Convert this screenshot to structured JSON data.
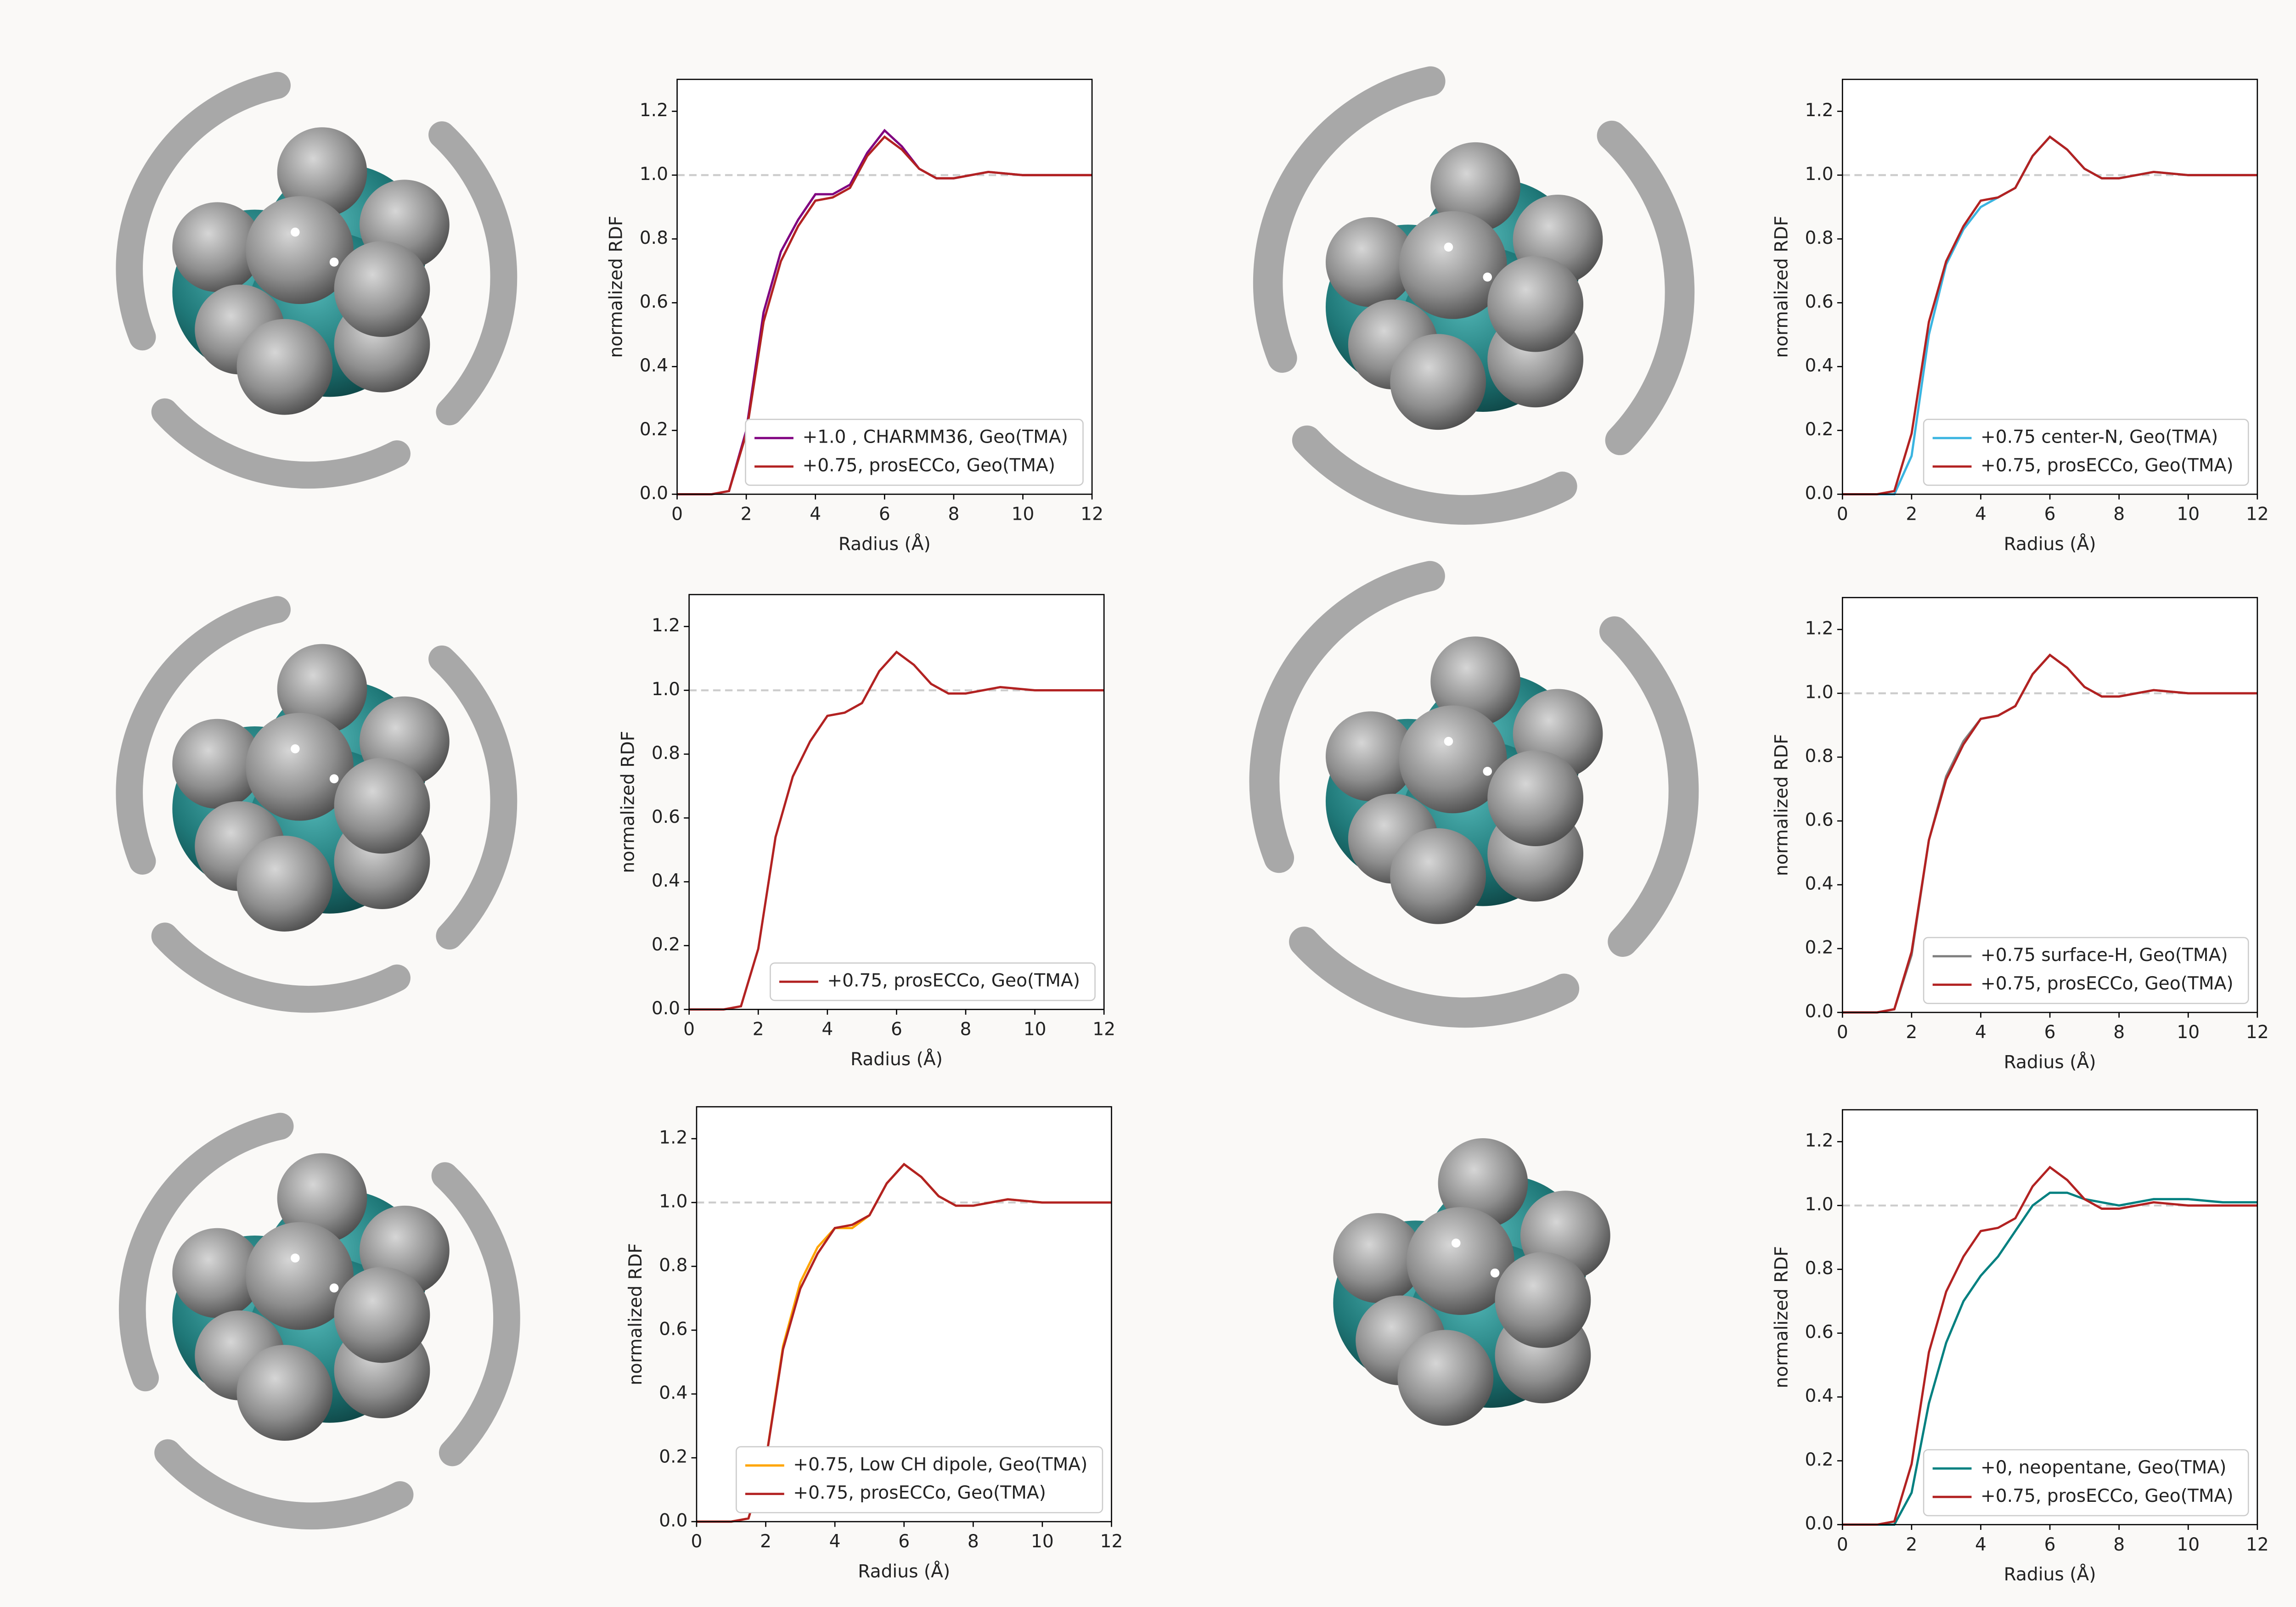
{
  "chart_data": [
    {
      "type": "line",
      "x_label": "Radius (Å)",
      "y_label": "normalized RDF",
      "x": [
        0,
        1,
        1.5,
        2,
        2.5,
        3,
        3.5,
        4,
        4.5,
        5,
        5.5,
        6,
        6.5,
        7,
        7.5,
        8,
        9,
        10,
        11,
        12
      ],
      "series": [
        {
          "name": "+1.0 , CHARMM36, Geo(TMA)",
          "color": "#800080",
          "values": [
            0,
            0,
            0.01,
            0.2,
            0.57,
            0.76,
            0.86,
            0.94,
            0.94,
            0.97,
            1.07,
            1.14,
            1.09,
            1.02,
            0.99,
            0.99,
            1.01,
            1.0,
            1.0,
            1.0
          ]
        },
        {
          "name": "+0.75, prosECCo, Geo(TMA)",
          "color": "#b22222",
          "values": [
            0,
            0,
            0.01,
            0.19,
            0.54,
            0.73,
            0.84,
            0.92,
            0.93,
            0.96,
            1.06,
            1.12,
            1.08,
            1.02,
            0.99,
            0.99,
            1.01,
            1.0,
            1.0,
            1.0
          ]
        }
      ],
      "xlim": [
        0,
        12
      ],
      "xticks": [
        0,
        2,
        4,
        6,
        8,
        10,
        12
      ],
      "ylim": [
        0,
        1.3
      ],
      "yticks": [
        {
          "value": 0,
          "label": "0.0"
        },
        {
          "value": 0.2,
          "label": "0.2"
        },
        {
          "value": 0.4,
          "label": "0.4"
        },
        {
          "value": 0.6,
          "label": "0.6"
        },
        {
          "value": 0.8,
          "label": "0.8"
        },
        {
          "value": 1,
          "label": "1.0"
        },
        {
          "value": 1.2,
          "label": "1.2"
        }
      ],
      "reference_line": 1,
      "legend": "lower right"
    },
    {
      "type": "line",
      "x_label": "Radius (Å)",
      "y_label": "normalized RDF",
      "x": [
        0,
        1,
        1.5,
        2,
        2.5,
        3,
        3.5,
        4,
        4.5,
        5,
        5.5,
        6,
        6.5,
        7,
        7.5,
        8,
        9,
        10,
        11,
        12
      ],
      "series": [
        {
          "name": "+0.75 center-N, Geo(TMA)",
          "color": "#3ab4e0",
          "values": [
            0,
            0,
            0,
            0.12,
            0.5,
            0.72,
            0.83,
            0.9,
            0.93,
            0.96,
            1.06,
            1.12,
            1.08,
            1.02,
            0.99,
            0.99,
            1.01,
            1.0,
            1.0,
            1.0
          ]
        },
        {
          "name": "+0.75, prosECCo, Geo(TMA)",
          "color": "#b22222",
          "values": [
            0,
            0,
            0.01,
            0.19,
            0.54,
            0.73,
            0.84,
            0.92,
            0.93,
            0.96,
            1.06,
            1.12,
            1.08,
            1.02,
            0.99,
            0.99,
            1.01,
            1.0,
            1.0,
            1.0
          ]
        }
      ],
      "xlim": [
        0,
        12
      ],
      "xticks": [
        0,
        2,
        4,
        6,
        8,
        10,
        12
      ],
      "ylim": [
        0,
        1.3
      ],
      "yticks": [
        {
          "value": 0,
          "label": "0.0"
        },
        {
          "value": 0.2,
          "label": "0.2"
        },
        {
          "value": 0.4,
          "label": "0.4"
        },
        {
          "value": 0.6,
          "label": "0.6"
        },
        {
          "value": 0.8,
          "label": "0.8"
        },
        {
          "value": 1,
          "label": "1.0"
        },
        {
          "value": 1.2,
          "label": "1.2"
        }
      ],
      "reference_line": 1,
      "legend": "lower right"
    },
    {
      "type": "line",
      "x_label": "Radius (Å)",
      "y_label": "normalized RDF",
      "x": [
        0,
        1,
        1.5,
        2,
        2.5,
        3,
        3.5,
        4,
        4.5,
        5,
        5.5,
        6,
        6.5,
        7,
        7.5,
        8,
        9,
        10,
        11,
        12
      ],
      "series": [
        {
          "name": "+0.75, prosECCo, Geo(TMA)",
          "color": "#b22222",
          "values": [
            0,
            0,
            0.01,
            0.19,
            0.54,
            0.73,
            0.84,
            0.92,
            0.93,
            0.96,
            1.06,
            1.12,
            1.08,
            1.02,
            0.99,
            0.99,
            1.01,
            1.0,
            1.0,
            1.0
          ]
        }
      ],
      "xlim": [
        0,
        12
      ],
      "xticks": [
        0,
        2,
        4,
        6,
        8,
        10,
        12
      ],
      "ylim": [
        0,
        1.3
      ],
      "yticks": [
        {
          "value": 0,
          "label": "0.0"
        },
        {
          "value": 0.2,
          "label": "0.2"
        },
        {
          "value": 0.4,
          "label": "0.4"
        },
        {
          "value": 0.6,
          "label": "0.6"
        },
        {
          "value": 0.8,
          "label": "0.8"
        },
        {
          "value": 1,
          "label": "1.0"
        },
        {
          "value": 1.2,
          "label": "1.2"
        }
      ],
      "reference_line": 1,
      "legend": "lower right"
    },
    {
      "type": "line",
      "x_label": "Radius (Å)",
      "y_label": "normalized RDF",
      "x": [
        0,
        1,
        1.5,
        2,
        2.5,
        3,
        3.5,
        4,
        4.5,
        5,
        5.5,
        6,
        6.5,
        7,
        7.5,
        8,
        9,
        10,
        11,
        12
      ],
      "series": [
        {
          "name": "+0.75 surface-H, Geo(TMA)",
          "color": "#808080",
          "values": [
            0,
            0,
            0.01,
            0.18,
            0.54,
            0.74,
            0.85,
            0.92,
            0.93,
            0.96,
            1.06,
            1.12,
            1.08,
            1.02,
            0.99,
            0.99,
            1.01,
            1.0,
            1.0,
            1.0
          ]
        },
        {
          "name": "+0.75, prosECCo, Geo(TMA)",
          "color": "#b22222",
          "values": [
            0,
            0,
            0.01,
            0.19,
            0.54,
            0.73,
            0.84,
            0.92,
            0.93,
            0.96,
            1.06,
            1.12,
            1.08,
            1.02,
            0.99,
            0.99,
            1.01,
            1.0,
            1.0,
            1.0
          ]
        }
      ],
      "xlim": [
        0,
        12
      ],
      "xticks": [
        0,
        2,
        4,
        6,
        8,
        10,
        12
      ],
      "ylim": [
        0,
        1.3
      ],
      "yticks": [
        {
          "value": 0,
          "label": "0.0"
        },
        {
          "value": 0.2,
          "label": "0.2"
        },
        {
          "value": 0.4,
          "label": "0.4"
        },
        {
          "value": 0.6,
          "label": "0.6"
        },
        {
          "value": 0.8,
          "label": "0.8"
        },
        {
          "value": 1,
          "label": "1.0"
        },
        {
          "value": 1.2,
          "label": "1.2"
        }
      ],
      "reference_line": 1,
      "legend": "lower right"
    },
    {
      "type": "line",
      "x_label": "Radius (Å)",
      "y_label": "normalized RDF",
      "x": [
        0,
        1,
        1.5,
        2,
        2.5,
        3,
        3.5,
        4,
        4.5,
        5,
        5.5,
        6,
        6.5,
        7,
        7.5,
        8,
        9,
        10,
        11,
        12
      ],
      "series": [
        {
          "name": "+0.75, Low CH dipole, Geo(TMA)",
          "color": "#ffa500",
          "values": [
            0,
            0,
            0.01,
            0.19,
            0.55,
            0.75,
            0.86,
            0.92,
            0.92,
            0.96,
            1.06,
            1.12,
            1.08,
            1.02,
            0.99,
            0.99,
            1.01,
            1.0,
            1.0,
            1.0
          ]
        },
        {
          "name": "+0.75, prosECCo, Geo(TMA)",
          "color": "#b22222",
          "values": [
            0,
            0,
            0.01,
            0.19,
            0.54,
            0.73,
            0.84,
            0.92,
            0.93,
            0.96,
            1.06,
            1.12,
            1.08,
            1.02,
            0.99,
            0.99,
            1.01,
            1.0,
            1.0,
            1.0
          ]
        }
      ],
      "xlim": [
        0,
        12
      ],
      "xticks": [
        0,
        2,
        4,
        6,
        8,
        10,
        12
      ],
      "ylim": [
        0,
        1.3
      ],
      "yticks": [
        {
          "value": 0,
          "label": "0.0"
        },
        {
          "value": 0.2,
          "label": "0.2"
        },
        {
          "value": 0.4,
          "label": "0.4"
        },
        {
          "value": 0.6,
          "label": "0.6"
        },
        {
          "value": 0.8,
          "label": "0.8"
        },
        {
          "value": 1,
          "label": "1.0"
        },
        {
          "value": 1.2,
          "label": "1.2"
        }
      ],
      "reference_line": 1,
      "legend": "lower right"
    },
    {
      "type": "line",
      "x_label": "Radius (Å)",
      "y_label": "normalized RDF",
      "x": [
        0,
        1,
        1.5,
        2,
        2.5,
        3,
        3.5,
        4,
        4.5,
        5,
        5.5,
        6,
        6.5,
        7,
        7.5,
        8,
        9,
        10,
        11,
        12
      ],
      "series": [
        {
          "name": "+0, neopentane, Geo(TMA)",
          "color": "#008080",
          "values": [
            0,
            0,
            0,
            0.1,
            0.38,
            0.57,
            0.7,
            0.78,
            0.84,
            0.92,
            1.0,
            1.04,
            1.04,
            1.02,
            1.01,
            1.0,
            1.02,
            1.02,
            1.01,
            1.01
          ]
        },
        {
          "name": "+0.75, prosECCo, Geo(TMA)",
          "color": "#b22222",
          "values": [
            0,
            0,
            0.01,
            0.19,
            0.54,
            0.73,
            0.84,
            0.92,
            0.93,
            0.96,
            1.06,
            1.12,
            1.08,
            1.02,
            0.99,
            0.99,
            1.01,
            1.0,
            1.0,
            1.0
          ]
        }
      ],
      "xlim": [
        0,
        12
      ],
      "xticks": [
        0,
        2,
        4,
        6,
        8,
        10,
        12
      ],
      "ylim": [
        0,
        1.3
      ],
      "yticks": [
        {
          "value": 0,
          "label": "0.0"
        },
        {
          "value": 0.2,
          "label": "0.2"
        },
        {
          "value": 0.4,
          "label": "0.4"
        },
        {
          "value": 0.6,
          "label": "0.6"
        },
        {
          "value": 0.8,
          "label": "0.8"
        },
        {
          "value": 1,
          "label": "1.0"
        },
        {
          "value": 1.2,
          "label": "1.2"
        }
      ],
      "reference_line": 1,
      "legend": "lower right"
    }
  ]
}
